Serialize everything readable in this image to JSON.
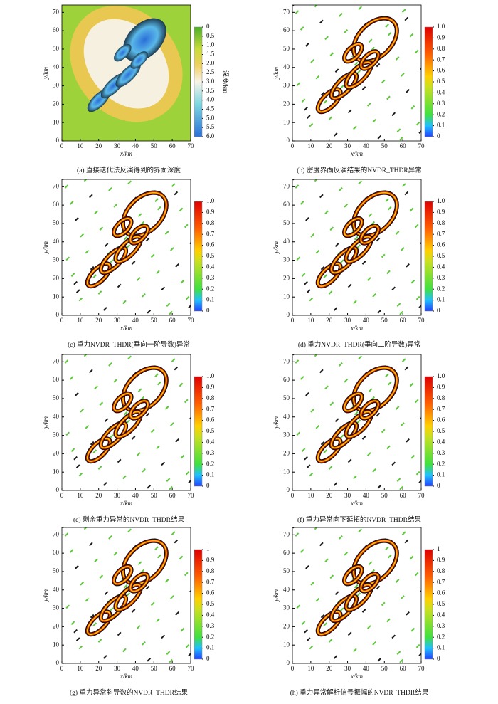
{
  "chart_data": [
    {
      "type": "heatmap",
      "caption": "(a) 直接迭代法反演得到的界面深度",
      "xlabel": "x/km",
      "ylabel": "y/km",
      "xlim": [
        0,
        70
      ],
      "ylim": [
        0,
        74
      ],
      "xticks": [
        0,
        10,
        20,
        30,
        40,
        50,
        60,
        70
      ],
      "yticks": [
        0,
        10,
        20,
        30,
        40,
        50,
        60,
        70
      ],
      "colormap": "terrain",
      "colorbar_label": "深度/km",
      "colorbar_lim": [
        0,
        6
      ],
      "colorbar_reversed": true,
      "colorbar_ticks": [
        0,
        0.5,
        {
          "value": 1,
          "label": "1.0"
        },
        1.5,
        {
          "value": 2,
          "label": "2.0"
        },
        2.5,
        {
          "value": 3,
          "label": "3.0"
        },
        3.5,
        {
          "value": 4,
          "label": "4.0"
        },
        4.5,
        {
          "value": 5,
          "label": "5.0"
        },
        5.5,
        {
          "value": 6,
          "label": "6.0"
        }
      ]
    },
    {
      "type": "heatmap",
      "caption": "(b) 密度界面反演结果的NVDR_THDR异常",
      "xlabel": "x/km",
      "ylabel": "y/km",
      "xlim": [
        0,
        70
      ],
      "ylim": [
        0,
        74
      ],
      "xticks": [
        0,
        10,
        20,
        30,
        40,
        50,
        60,
        70
      ],
      "yticks": [
        0,
        10,
        20,
        30,
        40,
        50,
        60,
        70
      ],
      "colormap": "rainbow",
      "colorbar_lim": [
        0,
        1
      ],
      "colorbar_reversed": false,
      "colorbar_ticks": [
        0,
        0.1,
        0.2,
        0.3,
        0.4,
        0.5,
        0.6,
        0.7,
        0.8,
        0.9,
        {
          "value": 1,
          "label": "1.0"
        }
      ]
    },
    {
      "type": "heatmap",
      "caption": "(c) 重力NVDR_THDR(垂向一阶导数)异常",
      "xlabel": "x/km",
      "ylabel": "y/km",
      "xlim": [
        0,
        70
      ],
      "ylim": [
        0,
        74
      ],
      "xticks": [
        0,
        10,
        20,
        30,
        40,
        50,
        60,
        70
      ],
      "yticks": [
        0,
        10,
        20,
        30,
        40,
        50,
        60,
        70
      ],
      "colormap": "rainbow",
      "colorbar_lim": [
        0,
        1
      ],
      "colorbar_reversed": false,
      "colorbar_ticks": [
        0,
        0.1,
        0.2,
        0.3,
        0.4,
        0.5,
        0.6,
        0.7,
        0.8,
        0.9,
        {
          "value": 1,
          "label": "1.0"
        }
      ]
    },
    {
      "type": "heatmap",
      "caption": "(d) 重力NVDR_THDR(垂向二阶导数)异常",
      "xlabel": "x/km",
      "ylabel": "y/km",
      "xlim": [
        0,
        70
      ],
      "ylim": [
        0,
        74
      ],
      "xticks": [
        0,
        10,
        20,
        30,
        40,
        50,
        60,
        70
      ],
      "yticks": [
        0,
        10,
        20,
        30,
        40,
        50,
        60,
        70
      ],
      "colormap": "rainbow",
      "colorbar_lim": [
        0,
        1
      ],
      "colorbar_reversed": false,
      "colorbar_ticks": [
        0,
        0.1,
        0.2,
        0.3,
        0.4,
        0.5,
        0.6,
        0.7,
        0.8,
        0.9,
        {
          "value": 1,
          "label": "1.0"
        }
      ]
    },
    {
      "type": "heatmap",
      "caption": "(e) 剩余重力异常的NVDR_THDR结果",
      "xlabel": "x/km",
      "ylabel": "y/km",
      "xlim": [
        0,
        70
      ],
      "ylim": [
        0,
        74
      ],
      "xticks": [
        0,
        10,
        20,
        30,
        40,
        50,
        60,
        70
      ],
      "yticks": [
        0,
        10,
        20,
        30,
        40,
        50,
        60,
        70
      ],
      "colormap": "rainbow",
      "colorbar_lim": [
        0,
        1
      ],
      "colorbar_reversed": false,
      "colorbar_ticks": [
        0,
        0.1,
        0.2,
        0.3,
        0.4,
        0.5,
        0.6,
        0.7,
        0.8,
        0.9,
        {
          "value": 1,
          "label": "1.0"
        }
      ]
    },
    {
      "type": "heatmap",
      "caption": "(f) 重力异常向下延拓的NVDR_THDR结果",
      "xlabel": "x/km",
      "ylabel": "y/km",
      "xlim": [
        0,
        70
      ],
      "ylim": [
        0,
        74
      ],
      "xticks": [
        0,
        10,
        20,
        30,
        40,
        50,
        60,
        70
      ],
      "yticks": [
        0,
        10,
        20,
        30,
        40,
        50,
        60,
        70
      ],
      "colormap": "rainbow",
      "colorbar_lim": [
        0,
        1
      ],
      "colorbar_reversed": false,
      "colorbar_ticks": [
        0,
        0.1,
        0.2,
        0.3,
        0.4,
        0.5,
        0.6,
        0.7,
        0.8,
        0.9,
        {
          "value": 1,
          "label": "1.0"
        }
      ]
    },
    {
      "type": "heatmap",
      "caption": "(g) 重力异常斜导数的NVDR_THDR结果",
      "xlabel": "x/km",
      "ylabel": "y/km",
      "xlim": [
        0,
        70
      ],
      "ylim": [
        0,
        74
      ],
      "xticks": [
        0,
        10,
        20,
        30,
        40,
        50,
        60,
        70
      ],
      "yticks": [
        0,
        10,
        20,
        30,
        40,
        50,
        60,
        70
      ],
      "colormap": "rainbow",
      "colorbar_lim": [
        0,
        1
      ],
      "colorbar_reversed": false,
      "colorbar_ticks": [
        0,
        0.1,
        0.2,
        0.3,
        0.4,
        0.5,
        0.6,
        0.7,
        0.8,
        0.9,
        1
      ]
    },
    {
      "type": "heatmap",
      "caption": "(h) 重力异常解析信号振幅的NVDR_THDR结果",
      "xlabel": "x/km",
      "ylabel": "y/km",
      "xlim": [
        0,
        70
      ],
      "ylim": [
        0,
        74
      ],
      "xticks": [
        0,
        10,
        20,
        30,
        40,
        50,
        60,
        70
      ],
      "yticks": [
        0,
        10,
        20,
        30,
        40,
        50,
        60,
        70
      ],
      "colormap": "rainbow",
      "colorbar_lim": [
        0,
        1
      ],
      "colorbar_reversed": false,
      "colorbar_ticks": [
        0,
        0.1,
        0.2,
        0.3,
        0.4,
        0.5,
        0.6,
        0.7,
        0.8,
        0.9,
        1
      ]
    }
  ]
}
